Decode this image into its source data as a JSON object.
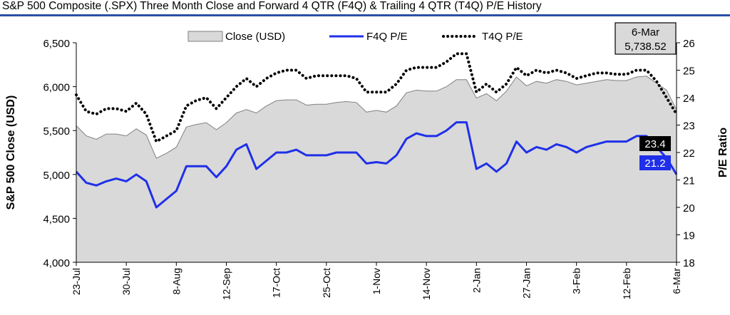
{
  "title": "S&P 500 Composite (.SPX) Three Month Close and Forward 4 QTR (F4Q) & Trailing 4 QTR (T4Q) P/E History",
  "callout": {
    "date": "6-Mar",
    "value": "5,738.52"
  },
  "end_labels": {
    "t4q": "23.4",
    "f4q": "21.2"
  },
  "colors": {
    "close_fill": "#d9d9d9",
    "close_line": "#808080",
    "f4q": "#1f30e8",
    "t4q": "#000000",
    "title_rule": "#2b4fa8"
  },
  "chart_data": {
    "type": "area",
    "title": "S&P 500 Composite (.SPX) Three Month Close and Forward 4 QTR (F4Q) & Trailing 4 QTR (T4Q) P/E History",
    "ylabel": "S&P 500 Close (USD)",
    "y2label": "P/E Ratio",
    "ylim": [
      4000,
      6500
    ],
    "y2lim": [
      18,
      26
    ],
    "yticks": [
      "4,000",
      "4,500",
      "5,000",
      "5,500",
      "6,000",
      "6,500"
    ],
    "y2ticks": [
      "18",
      "19",
      "20",
      "21",
      "22",
      "23",
      "24",
      "25",
      "26"
    ],
    "xticklabels": [
      "23-Jul",
      "30-Jul",
      "8-Aug",
      "12-Sep",
      "17-Oct",
      "25-Oct",
      "1-Nov",
      "14-Nov",
      "2-Jan",
      "27-Jan",
      "3-Feb",
      "12-Feb",
      "6-Mar"
    ],
    "legend_position": "top",
    "grid": false,
    "series": [
      {
        "name": "Close (USD)",
        "axis": "left",
        "type": "area",
        "values": [
          5555,
          5440,
          5400,
          5460,
          5460,
          5440,
          5520,
          5450,
          5185,
          5240,
          5310,
          5540,
          5570,
          5590,
          5510,
          5590,
          5700,
          5740,
          5700,
          5780,
          5840,
          5850,
          5850,
          5790,
          5800,
          5800,
          5820,
          5830,
          5820,
          5710,
          5730,
          5710,
          5780,
          5930,
          5960,
          5950,
          5950,
          6000,
          6080,
          6080,
          5870,
          5920,
          5840,
          5950,
          6110,
          6010,
          6060,
          6040,
          6080,
          6060,
          6020,
          6040,
          6060,
          6080,
          6070,
          6070,
          6110,
          6120,
          6040,
          5960,
          5738.52
        ]
      },
      {
        "name": "F4Q P/E",
        "axis": "right",
        "type": "line",
        "values": [
          21.3,
          20.9,
          20.8,
          20.95,
          21.05,
          20.95,
          21.2,
          20.95,
          20.0,
          20.3,
          20.6,
          21.5,
          21.5,
          21.5,
          21.1,
          21.5,
          22.1,
          22.3,
          21.4,
          21.7,
          22.0,
          22.0,
          22.1,
          21.9,
          21.9,
          21.9,
          22.0,
          22.0,
          22.0,
          21.6,
          21.65,
          21.6,
          21.9,
          22.5,
          22.7,
          22.6,
          22.6,
          22.8,
          23.1,
          23.1,
          21.4,
          21.6,
          21.3,
          21.6,
          22.4,
          22.0,
          22.2,
          22.1,
          22.3,
          22.2,
          22.0,
          22.2,
          22.3,
          22.4,
          22.4,
          22.4,
          22.6,
          22.6,
          22.2,
          21.8,
          21.2
        ]
      },
      {
        "name": "T4Q P/E",
        "axis": "right",
        "type": "line",
        "values": [
          24.1,
          23.5,
          23.4,
          23.6,
          23.6,
          23.5,
          23.8,
          23.4,
          22.4,
          22.6,
          22.8,
          23.7,
          23.9,
          24.0,
          23.6,
          24.0,
          24.4,
          24.7,
          24.4,
          24.7,
          24.9,
          25.0,
          25.0,
          24.7,
          24.8,
          24.8,
          24.8,
          24.8,
          24.7,
          24.2,
          24.2,
          24.2,
          24.5,
          25.0,
          25.1,
          25.1,
          25.1,
          25.3,
          25.6,
          25.6,
          24.2,
          24.5,
          24.2,
          24.5,
          25.1,
          24.8,
          25.0,
          24.9,
          25.0,
          24.9,
          24.7,
          24.8,
          24.9,
          24.9,
          24.85,
          24.85,
          25.0,
          25.0,
          24.6,
          24.0,
          23.4
        ]
      }
    ]
  }
}
